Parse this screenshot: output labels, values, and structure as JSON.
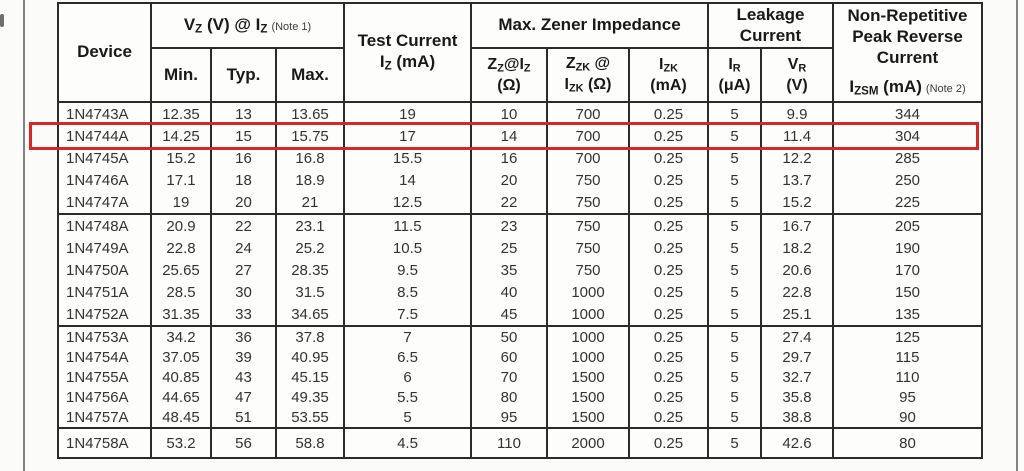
{
  "page": {
    "background": "#fbfbfa",
    "rule_color": "#828282"
  },
  "highlight": {
    "color": "#d5282a",
    "device": "1N4744A"
  },
  "table": {
    "header": {
      "device": "Device",
      "vz": {
        "v": "V",
        "v_sub": "Z",
        "mid": " (V) @ ",
        "i": "I",
        "i_sub": "Z",
        "note": "(Note 1)"
      },
      "min": "Min.",
      "typ": "Typ.",
      "max": "Max.",
      "test": {
        "line1": "Test Current",
        "i": "I",
        "i_sub": "Z",
        "unit": " (mA)"
      },
      "mzi": "Max. Zener Impedance",
      "zz": {
        "z": "Z",
        "z_sub": "Z",
        "at": "@",
        "i": "I",
        "i_sub": "Z",
        "unit": "(Ω)"
      },
      "zzk": {
        "z": "Z",
        "z_sub": "ZK",
        "at": " @",
        "i": "I",
        "i_sub": "ZK",
        "unit": " (Ω)"
      },
      "izk": {
        "i": "I",
        "i_sub": "ZK",
        "unit": "(mA)"
      },
      "leakage": {
        "line1": "Leakage",
        "line2": "Current"
      },
      "ir": {
        "i": "I",
        "i_sub": "R",
        "unit": "(μA)"
      },
      "vr": {
        "v": "V",
        "v_sub": "R",
        "unit": "(V)"
      },
      "nonrep": {
        "line1": "Non-Repetitive",
        "line2": "Peak Reverse",
        "line3": "Current",
        "i": "I",
        "i_sub": "ZSM",
        "unit": " (mA)",
        "note": "(Note 2)"
      }
    },
    "columns": [
      "Device",
      "Vz Min (V)",
      "Vz Typ (V)",
      "Vz Max (V)",
      "Test Current Iz (mA)",
      "Zz@Iz (Ω)",
      "Zzk@Izk (Ω)",
      "Izk (mA)",
      "Ir (μA)",
      "Vr (V)",
      "Izsm (mA)"
    ],
    "groups": [
      {
        "rows": [
          [
            "1N4743A",
            "12.35",
            "13",
            "13.65",
            "19",
            "10",
            "700",
            "0.25",
            "5",
            "9.9",
            "344"
          ],
          [
            "1N4744A",
            "14.25",
            "15",
            "15.75",
            "17",
            "14",
            "700",
            "0.25",
            "5",
            "11.4",
            "304"
          ],
          [
            "1N4745A",
            "15.2",
            "16",
            "16.8",
            "15.5",
            "16",
            "700",
            "0.25",
            "5",
            "12.2",
            "285"
          ],
          [
            "1N4746A",
            "17.1",
            "18",
            "18.9",
            "14",
            "20",
            "750",
            "0.25",
            "5",
            "13.7",
            "250"
          ],
          [
            "1N4747A",
            "19",
            "20",
            "21",
            "12.5",
            "22",
            "750",
            "0.25",
            "5",
            "15.2",
            "225"
          ]
        ]
      },
      {
        "rows": [
          [
            "1N4748A",
            "20.9",
            "22",
            "23.1",
            "11.5",
            "23",
            "750",
            "0.25",
            "5",
            "16.7",
            "205"
          ],
          [
            "1N4749A",
            "22.8",
            "24",
            "25.2",
            "10.5",
            "25",
            "750",
            "0.25",
            "5",
            "18.2",
            "190"
          ],
          [
            "1N4750A",
            "25.65",
            "27",
            "28.35",
            "9.5",
            "35",
            "750",
            "0.25",
            "5",
            "20.6",
            "170"
          ],
          [
            "1N4751A",
            "28.5",
            "30",
            "31.5",
            "8.5",
            "40",
            "1000",
            "0.25",
            "5",
            "22.8",
            "150"
          ],
          [
            "1N4752A",
            "31.35",
            "33",
            "34.65",
            "7.5",
            "45",
            "1000",
            "0.25",
            "5",
            "25.1",
            "135"
          ]
        ]
      },
      {
        "rows": [
          [
            "1N4753A",
            "34.2",
            "36",
            "37.8",
            "7",
            "50",
            "1000",
            "0.25",
            "5",
            "27.4",
            "125"
          ],
          [
            "1N4754A",
            "37.05",
            "39",
            "40.95",
            "6.5",
            "60",
            "1000",
            "0.25",
            "5",
            "29.7",
            "115"
          ],
          [
            "1N4755A",
            "40.85",
            "43",
            "45.15",
            "6",
            "70",
            "1500",
            "0.25",
            "5",
            "32.7",
            "110"
          ],
          [
            "1N4756A",
            "44.65",
            "47",
            "49.35",
            "5.5",
            "80",
            "1500",
            "0.25",
            "5",
            "35.8",
            "95"
          ],
          [
            "1N4757A",
            "48.45",
            "51",
            "53.55",
            "5",
            "95",
            "1500",
            "0.25",
            "5",
            "38.8",
            "90"
          ]
        ]
      },
      {
        "rows": [
          [
            "1N4758A",
            "53.2",
            "56",
            "58.8",
            "4.5",
            "110",
            "2000",
            "0.25",
            "5",
            "42.6",
            "80"
          ]
        ]
      }
    ]
  }
}
